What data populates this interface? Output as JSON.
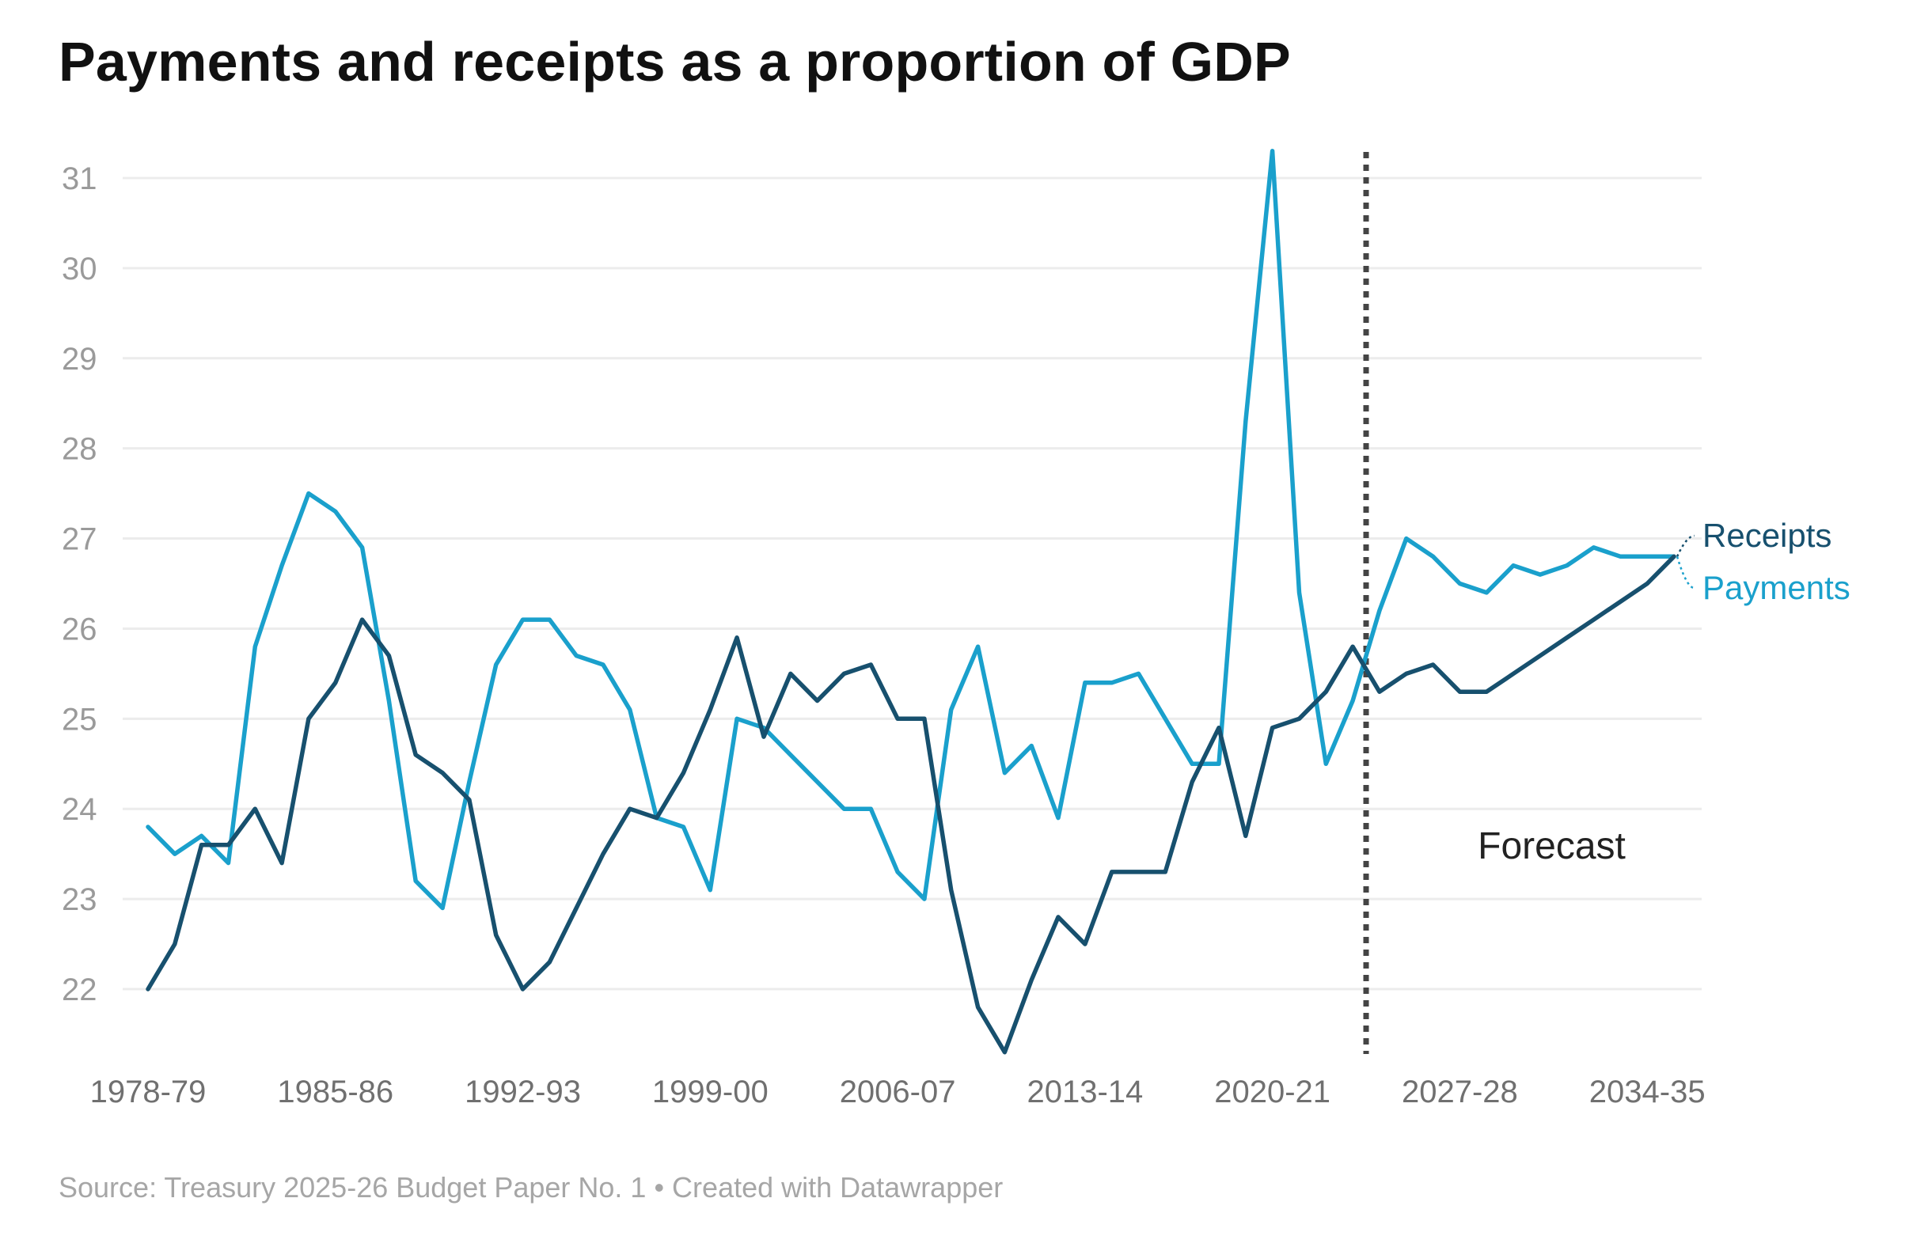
{
  "chart_data": {
    "type": "line",
    "title": "Payments and receipts as a proportion of GDP",
    "source": "Source: Treasury 2025-26 Budget Paper No. 1 • Created with Datawrapper",
    "xlabel": "",
    "ylabel": "",
    "ylim": [
      21.3,
      31.3
    ],
    "yticks": [
      22,
      23,
      24,
      25,
      26,
      27,
      28,
      29,
      30,
      31
    ],
    "x": [
      "1978-79",
      "1979-80",
      "1980-81",
      "1981-82",
      "1982-83",
      "1983-84",
      "1984-85",
      "1985-86",
      "1986-87",
      "1987-88",
      "1988-89",
      "1989-90",
      "1990-91",
      "1991-92",
      "1992-93",
      "1993-94",
      "1994-95",
      "1995-96",
      "1996-97",
      "1997-98",
      "1998-99",
      "1999-00",
      "2000-01",
      "2001-02",
      "2002-03",
      "2003-04",
      "2004-05",
      "2005-06",
      "2006-07",
      "2007-08",
      "2008-09",
      "2009-10",
      "2010-11",
      "2011-12",
      "2012-13",
      "2013-14",
      "2014-15",
      "2015-16",
      "2016-17",
      "2017-18",
      "2018-19",
      "2019-20",
      "2020-21",
      "2021-22",
      "2022-23",
      "2023-24",
      "2024-25",
      "2025-26",
      "2026-27",
      "2027-28",
      "2028-29",
      "2029-30",
      "2030-31",
      "2031-32",
      "2032-33",
      "2033-34",
      "2034-35",
      "2035-36"
    ],
    "xtick_labels": [
      "1978-79",
      "1985-86",
      "1992-93",
      "1999-00",
      "2006-07",
      "2013-14",
      "2020-21",
      "2027-28",
      "2034-35"
    ],
    "series": [
      {
        "name": "Receipts",
        "color": "#17506e",
        "values": [
          22.0,
          22.5,
          23.6,
          23.6,
          24.0,
          23.4,
          25.0,
          25.4,
          26.1,
          25.7,
          24.6,
          24.4,
          24.1,
          22.6,
          22.0,
          22.3,
          22.9,
          23.5,
          24.0,
          23.9,
          24.4,
          25.1,
          25.9,
          24.8,
          25.5,
          25.2,
          25.5,
          25.6,
          25.0,
          25.0,
          23.1,
          21.8,
          21.3,
          22.1,
          22.8,
          22.5,
          23.3,
          23.3,
          23.3,
          24.3,
          24.9,
          23.7,
          24.9,
          25.0,
          25.3,
          25.8,
          25.3,
          25.5,
          25.6,
          25.3,
          25.3,
          25.5,
          25.7,
          25.9,
          26.1,
          26.3,
          26.5,
          26.8
        ]
      },
      {
        "name": "Payments",
        "color": "#1aa0cc",
        "values": [
          23.8,
          23.5,
          23.7,
          23.4,
          25.8,
          26.7,
          27.5,
          27.3,
          26.9,
          25.2,
          23.2,
          22.9,
          24.3,
          25.6,
          26.1,
          26.1,
          25.7,
          25.6,
          25.1,
          23.9,
          23.8,
          23.1,
          25.0,
          24.9,
          24.6,
          24.3,
          24.0,
          24.0,
          23.3,
          23.0,
          25.1,
          25.8,
          24.4,
          24.7,
          23.9,
          25.4,
          25.4,
          25.5,
          25.0,
          24.5,
          24.5,
          28.3,
          31.3,
          26.4,
          24.5,
          25.2,
          26.2,
          27.0,
          26.8,
          26.5,
          26.4,
          26.7,
          26.6,
          26.7,
          26.9,
          26.8,
          26.8,
          26.8
        ]
      }
    ],
    "forecast_start": "2024-25",
    "annotations": [
      {
        "text": "Forecast"
      }
    ],
    "grid": true,
    "legend": "direct labels at right end of lines"
  }
}
